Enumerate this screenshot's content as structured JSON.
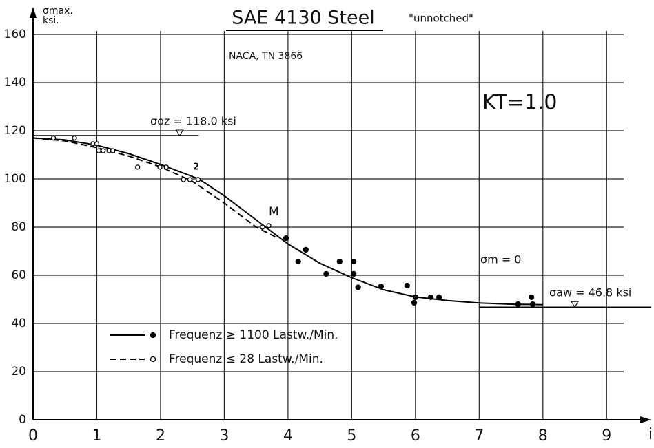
{
  "chart_data": {
    "type": "scatter",
    "title": "SAE 4130 Steel",
    "subtitle": "\"unnotched\"",
    "source": "NACA, TN 3866",
    "y_label": [
      "σmax.",
      "ksi."
    ],
    "x_label": "i",
    "annotations": [
      "KT=1.0",
      "σm = 0",
      "2",
      "M"
    ],
    "reference_lines": [
      {
        "label": "σoz = 118.0 ksi",
        "value": 118.0,
        "x": [
          0,
          2.6
        ]
      },
      {
        "label": "σaw = 46.8 ksi",
        "value": 46.8,
        "x": [
          7,
          9.7
        ]
      }
    ],
    "xlim": [
      0,
      9.7
    ],
    "ylim": [
      0,
      170
    ],
    "xticks": [
      0,
      1,
      2,
      3,
      4,
      5,
      6,
      7,
      8,
      9
    ],
    "yticks": [
      0,
      20,
      40,
      60,
      80,
      100,
      120,
      140,
      160
    ],
    "grid": true,
    "series": [
      {
        "name": "Frequenz ≥ 1100 Lastw./Min.",
        "color": "#000",
        "marker": "filled",
        "dash": false,
        "x": [
          3.97,
          4.16,
          4.28,
          4.6,
          4.81,
          5.03,
          5.03,
          5.1,
          5.46,
          5.87,
          5.98,
          6.0,
          6.24,
          6.37,
          7.61,
          7.82,
          7.84
        ],
        "values": [
          75.4,
          65.7,
          70.6,
          60.6,
          65.7,
          65.7,
          60.6,
          55,
          55.4,
          55.7,
          48.6,
          50.9,
          50.9,
          50.9,
          48,
          50.9,
          48
        ],
        "curve": {
          "x": [
            0,
            0.5,
            1,
            1.5,
            2,
            2.6,
            3,
            3.3,
            3.6,
            4,
            4.5,
            5,
            5.5,
            6,
            6.5,
            7,
            7.5,
            8
          ],
          "values": [
            117,
            116.2,
            114,
            110.5,
            106,
            100,
            93,
            87,
            81,
            73,
            65,
            59,
            54,
            51,
            49.5,
            48.5,
            48,
            47.8
          ]
        }
      },
      {
        "name": "Frequenz ≤ 28 Lastw./Min.",
        "color": "#000",
        "marker": "open",
        "dash": true,
        "x": [
          0.32,
          0.65,
          0.94,
          1.0,
          1.03,
          1.1,
          1.19,
          1.25,
          1.64,
          1.99,
          2.09,
          2.36,
          2.46,
          2.59,
          3.6,
          3.7
        ],
        "values": [
          117,
          117,
          114.6,
          114.6,
          111.7,
          111.7,
          111.7,
          111.7,
          104.9,
          104.9,
          104.9,
          99.7,
          99.7,
          99.7,
          80,
          80.6
        ],
        "curve": {
          "x": [
            0,
            0.5,
            1,
            1.5,
            2,
            2.5,
            3,
            3.3,
            3.5,
            3.8
          ],
          "values": [
            117,
            115.8,
            113,
            109.5,
            105,
            99,
            90,
            84,
            80,
            76
          ]
        }
      }
    ]
  }
}
